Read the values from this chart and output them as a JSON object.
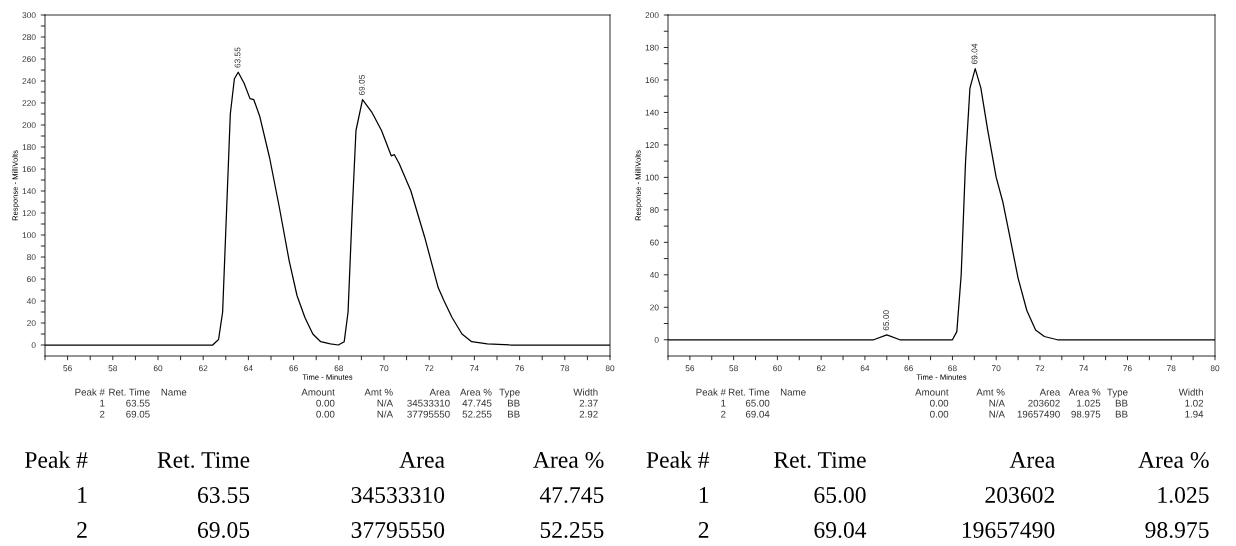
{
  "chart_data": [
    {
      "type": "line",
      "xlabel": "Time - Minutes",
      "ylabel": "Response - MilliVolts",
      "grid": false,
      "legend": false,
      "marker": "none",
      "line_style": "solid",
      "xlim": [
        55,
        80
      ],
      "ylim": [
        -10,
        300
      ],
      "xticks": [
        {
          "value": 55,
          "label": null
        },
        56,
        {
          "value": 57,
          "label": null
        },
        58,
        {
          "value": 59,
          "label": null
        },
        60,
        {
          "value": 61,
          "label": null
        },
        62,
        {
          "value": 63,
          "label": null
        },
        64,
        {
          "value": 65,
          "label": null
        },
        66,
        {
          "value": 67,
          "label": null
        },
        68,
        {
          "value": 69,
          "label": null
        },
        70,
        {
          "value": 71,
          "label": null
        },
        72,
        {
          "value": 73,
          "label": null
        },
        74,
        {
          "value": 75,
          "label": null
        },
        76,
        {
          "value": 77,
          "label": null
        },
        78,
        {
          "value": 79,
          "label": null
        },
        80
      ],
      "yticks": [
        0,
        {
          "value": 10,
          "label": null
        },
        20,
        {
          "value": 30,
          "label": null
        },
        40,
        {
          "value": 50,
          "label": null
        },
        60,
        {
          "value": 70,
          "label": null
        },
        80,
        {
          "value": 90,
          "label": null
        },
        100,
        {
          "value": 110,
          "label": null
        },
        120,
        {
          "value": 130,
          "label": null
        },
        140,
        {
          "value": 150,
          "label": null
        },
        160,
        {
          "value": 170,
          "label": null
        },
        180,
        {
          "value": 190,
          "label": null
        },
        200,
        {
          "value": 210,
          "label": null
        },
        220,
        {
          "value": 230,
          "label": null
        },
        240,
        {
          "value": 250,
          "label": null
        },
        260,
        {
          "value": 270,
          "label": null
        },
        280,
        {
          "value": 290,
          "label": null
        },
        300
      ],
      "series": [
        {
          "color": "#000000",
          "x": [
            55,
            62.42,
            62.68,
            62.86,
            63.03,
            63.2,
            63.38,
            63.55,
            63.81,
            64.07,
            64.24,
            64.5,
            64.94,
            65.37,
            65.8,
            66.15,
            66.5,
            66.85,
            67.2,
            67.63,
            67.98,
            68.24,
            68.41,
            68.59,
            68.76,
            69.05,
            69.45,
            69.89,
            70.32,
            70.46,
            70.67,
            71.19,
            71.8,
            72.4,
            72.66,
            73.01,
            73.45,
            73.88,
            74.57,
            75.6,
            80
          ],
          "values": [
            0,
            0,
            5,
            30,
            120,
            210,
            242,
            248,
            238,
            224,
            223,
            208,
            170,
            125,
            77,
            45,
            25,
            10,
            3,
            1,
            0,
            3,
            30,
            120,
            195,
            223,
            212,
            195,
            172,
            173,
            165,
            140,
            98,
            52,
            40,
            25,
            10,
            3,
            1,
            0,
            0
          ]
        }
      ],
      "annotations": [
        {
          "text": "63.55",
          "x": 63.55,
          "y": 248
        },
        {
          "text": "69.05",
          "x": 69.05,
          "y": 223
        },
        "Peak #",
        "Ret. Time",
        "Name",
        "Amount",
        "Amt %",
        "Area",
        "Area %",
        "Type",
        "Width",
        "1",
        "63.55",
        "0.00",
        "N/A",
        "34533310",
        "47.745",
        "BB",
        "2.37",
        "2",
        "69.05",
        "0.00",
        "N/A",
        "37795550",
        "52.255",
        "BB",
        "2.92",
        "Peak #",
        "Ret. Time",
        "Area",
        "Area %",
        "1",
        "63.55",
        "34533310",
        "47.745",
        "2",
        "69.05",
        "37795550",
        "52.255"
      ]
    },
    {
      "type": "line",
      "xlabel": "Time - Minutes",
      "ylabel": "Response - MilliVolts",
      "grid": false,
      "legend": false,
      "marker": "none",
      "line_style": "solid",
      "xlim": [
        55,
        80
      ],
      "ylim": [
        -10,
        200
      ],
      "xticks": [
        {
          "value": 55,
          "label": null
        },
        56,
        {
          "value": 57,
          "label": null
        },
        58,
        {
          "value": 59,
          "label": null
        },
        60,
        {
          "value": 61,
          "label": null
        },
        62,
        {
          "value": 63,
          "label": null
        },
        64,
        {
          "value": 65,
          "label": null
        },
        66,
        {
          "value": 67,
          "label": null
        },
        68,
        {
          "value": 69,
          "label": null
        },
        70,
        {
          "value": 71,
          "label": null
        },
        72,
        {
          "value": 73,
          "label": null
        },
        74,
        {
          "value": 75,
          "label": null
        },
        76,
        {
          "value": 77,
          "label": null
        },
        78,
        {
          "value": 79,
          "label": null
        },
        80
      ],
      "yticks": [
        0,
        {
          "value": 10,
          "label": null
        },
        20,
        {
          "value": 30,
          "label": null
        },
        40,
        {
          "value": 50,
          "label": null
        },
        60,
        {
          "value": 70,
          "label": null
        },
        80,
        {
          "value": 90,
          "label": null
        },
        100,
        {
          "value": 110,
          "label": null
        },
        120,
        {
          "value": 130,
          "label": null
        },
        140,
        {
          "value": 150,
          "label": null
        },
        160,
        {
          "value": 170,
          "label": null
        },
        180,
        {
          "value": 190,
          "label": null
        },
        200
      ],
      "series": [
        {
          "color": "#000000",
          "x": [
            55,
            64,
            64.4,
            65.0,
            65.6,
            66,
            68,
            68.2,
            68.4,
            68.6,
            68.8,
            69.04,
            69.3,
            69.6,
            70.0,
            70.3,
            70.6,
            71.0,
            71.4,
            71.8,
            72.2,
            72.8,
            73.5,
            80
          ],
          "values": [
            0,
            0,
            0,
            3,
            0,
            0,
            0,
            5,
            40,
            110,
            155,
            167,
            155,
            130,
            100,
            85,
            65,
            38,
            18,
            6,
            2,
            0,
            0,
            0
          ]
        }
      ],
      "annotations": [
        {
          "text": "65.00",
          "x": 65.0,
          "y": 3
        },
        {
          "text": "69.04",
          "x": 69.04,
          "y": 167
        },
        "Peak #",
        "Ret. Time",
        "Name",
        "Amount",
        "Amt %",
        "Area",
        "Area %",
        "Type",
        "Width",
        "1",
        "65.00",
        "0.00",
        "N/A",
        "203602",
        "1.025",
        "BB",
        "1.02",
        "2",
        "69.04",
        "0.00",
        "N/A",
        "19657490",
        "98.975",
        "BB",
        "1.94",
        "Peak #",
        "Ret. Time",
        "Area",
        "Area %",
        "1",
        "65.00",
        "203602",
        "1.025",
        "2",
        "69.04",
        "19657490",
        "98.975"
      ]
    }
  ]
}
